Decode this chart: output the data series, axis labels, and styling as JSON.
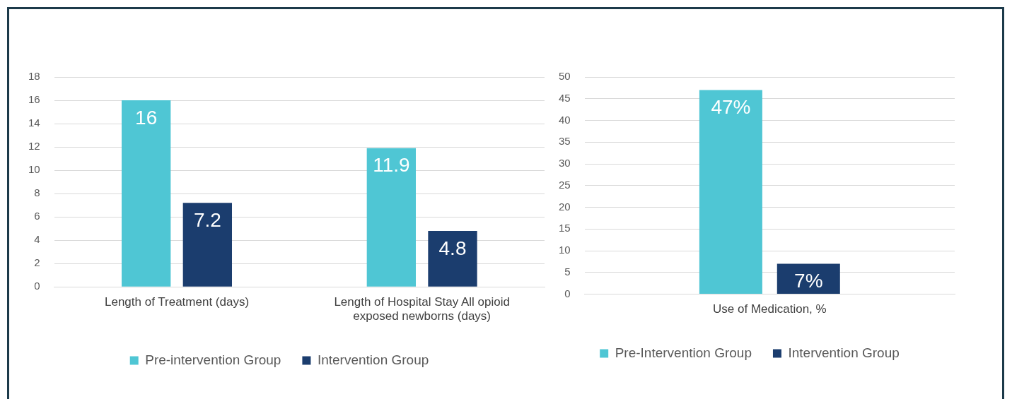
{
  "chart_data": [
    {
      "type": "bar",
      "categories": [
        "Length of Treatment (days)",
        "Length of Hospital Stay All opioid exposed newborns (days)"
      ],
      "series": [
        {
          "name": "Pre-intervention Group",
          "color": "#4fc6d4",
          "values": [
            16,
            11.9
          ]
        },
        {
          "name": "Intervention Group",
          "color": "#1b3d6e",
          "values": [
            7.2,
            4.8
          ]
        }
      ],
      "ylim": [
        0,
        18
      ],
      "yticks": [
        0,
        2,
        4,
        6,
        8,
        10,
        12,
        14,
        16,
        18
      ],
      "grid": "y",
      "legend": "bottom",
      "data_labels": true
    },
    {
      "type": "bar",
      "categories": [
        "Use of Medication, %"
      ],
      "series": [
        {
          "name": "Pre-Intervention Group",
          "color": "#4fc6d4",
          "values": [
            47
          ],
          "value_labels": [
            "47%"
          ]
        },
        {
          "name": "Intervention Group",
          "color": "#1b3d6e",
          "values": [
            7
          ],
          "value_labels": [
            "7%"
          ]
        }
      ],
      "ylim": [
        0,
        50
      ],
      "yticks": [
        0,
        5,
        10,
        15,
        20,
        25,
        30,
        35,
        40,
        45,
        50
      ],
      "grid": "y",
      "legend": "bottom"
    }
  ]
}
